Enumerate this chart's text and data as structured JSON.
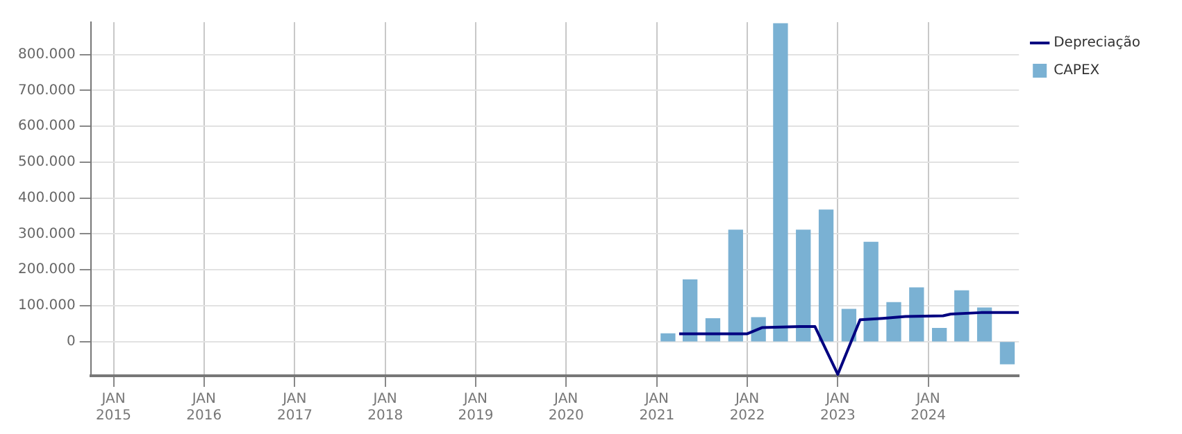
{
  "chart_data": {
    "type": "bar",
    "x": [
      "2021-02-15",
      "2021-05-15",
      "2021-08-15",
      "2021-11-15",
      "2022-02-15",
      "2022-05-15",
      "2022-08-15",
      "2022-11-15",
      "2023-02-15",
      "2023-05-15",
      "2023-08-15",
      "2023-11-15",
      "2024-02-15",
      "2024-05-15",
      "2024-08-15",
      "2024-11-15"
    ],
    "series": [
      {
        "name": "CAPEX",
        "color": "#7ab1d3",
        "values": [
          22000,
          172000,
          64000,
          311000,
          67000,
          886000,
          311000,
          367000,
          90000,
          277000,
          109000,
          150000,
          37000,
          142000,
          94000,
          -62000
        ]
      },
      {
        "name": "Depreciação",
        "type": "line",
        "color": "#000080",
        "x": [
          "2021-04",
          "2022-01",
          "2022-03",
          "2022-08",
          "2022-10",
          "2023-01",
          "2023-04",
          "2023-07",
          "2023-10",
          "2024-03",
          "2024-04",
          "2024-08",
          "2025-01"
        ],
        "values": [
          22000,
          22000,
          39000,
          42000,
          42000,
          -91000,
          61000,
          65000,
          70000,
          72000,
          77000,
          81000,
          81000
        ]
      }
    ],
    "xlim": [
      "2014-10",
      "2025-01"
    ],
    "xticks": [
      {
        "value": "2015-01",
        "label": "JAN 2015"
      },
      {
        "value": "2016-01",
        "label": "JAN 2016"
      },
      {
        "value": "2017-01",
        "label": "JAN 2017"
      },
      {
        "value": "2018-01",
        "label": "JAN 2018"
      },
      {
        "value": "2019-01",
        "label": "JAN 2019"
      },
      {
        "value": "2020-01",
        "label": "JAN 2020"
      },
      {
        "value": "2021-01",
        "label": "JAN 2021"
      },
      {
        "value": "2022-01",
        "label": "JAN 2022"
      },
      {
        "value": "2023-01",
        "label": "JAN 2023"
      },
      {
        "value": "2024-01",
        "label": "JAN 2024"
      }
    ],
    "ylim": [
      -95000,
      890000
    ],
    "yticks": [
      0,
      {
        "value": 100000,
        "label": "100.000"
      },
      {
        "value": 200000,
        "label": "200.000"
      },
      {
        "value": 300000,
        "label": "300.000"
      },
      {
        "value": 400000,
        "label": "400.000"
      },
      {
        "value": 500000,
        "label": "500.000"
      },
      {
        "value": 600000,
        "label": "600.000"
      },
      {
        "value": 700000,
        "label": "700.000"
      },
      {
        "value": 800000,
        "label": "800.000"
      }
    ],
    "grid": true,
    "legend": "top right",
    "marker": "none",
    "line_style": "solid"
  }
}
